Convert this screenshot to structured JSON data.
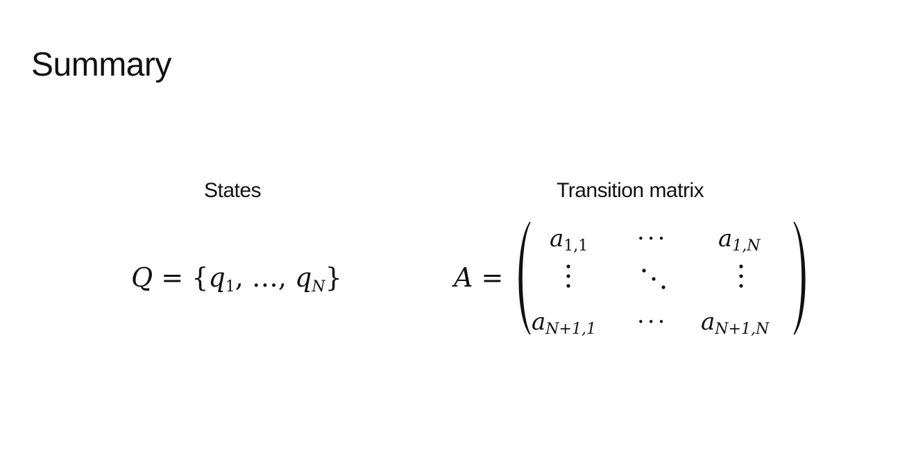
{
  "slide": {
    "title": "Summary",
    "states": {
      "heading": "States",
      "lhs": "Q",
      "equals": "=",
      "open_brace": "{",
      "q": "q",
      "q_first_sub": "1",
      "sep1": ", ",
      "ellipsis": "…",
      "sep2": ", ",
      "q_last_sub": "N",
      "close_brace": "}"
    },
    "transition": {
      "heading": "Transition matrix",
      "lhs": "A",
      "equals": "=",
      "matrix": {
        "var": "a",
        "r1c1_sub": "1,1",
        "r1c2": "···",
        "r1c3_sub": "1,N",
        "r3c1_sub": "N+1,1",
        "r3c2": "···",
        "r3c3_sub": "N+1,N"
      }
    }
  }
}
